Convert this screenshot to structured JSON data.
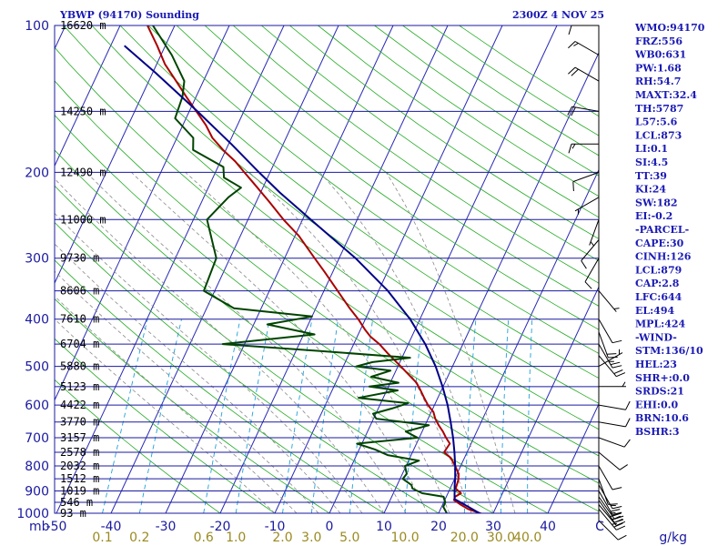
{
  "chart_data": {
    "type": "skew-t",
    "title": "YBWP (94170) Sounding",
    "datetime": "2300Z  4 NOV 25",
    "pressure_axis": {
      "ticks": [
        100,
        200,
        300,
        400,
        500,
        600,
        700,
        800,
        900,
        1000
      ],
      "top": 100,
      "bottom": 1000,
      "unit": "mb"
    },
    "temperature_axis": {
      "ticks": [
        -50,
        -40,
        -30,
        -20,
        -10,
        0,
        10,
        20,
        30,
        40
      ],
      "unit": "C",
      "range": [
        -50,
        50
      ]
    },
    "mixing_ratio_labels": [
      "0.1",
      "0.2",
      "0.6",
      "1.0",
      "2.0",
      "3.0",
      "5.0",
      "10.0",
      "20.0",
      "30.0",
      "40.0"
    ],
    "mixing_ratio_unit": "g/kg",
    "height_levels": [
      {
        "p": 100,
        "label": "16620 m"
      },
      {
        "p": 150,
        "label": "14250 m"
      },
      {
        "p": 200,
        "label": "12490 m"
      },
      {
        "p": 250,
        "label": "11000 m"
      },
      {
        "p": 300,
        "label": "9730 m"
      },
      {
        "p": 350,
        "label": "8606 m"
      },
      {
        "p": 400,
        "label": "7610 m"
      },
      {
        "p": 450,
        "label": "6704 m"
      },
      {
        "p": 500,
        "label": "5880 m"
      },
      {
        "p": 550,
        "label": "5123 m"
      },
      {
        "p": 600,
        "label": "4422 m"
      },
      {
        "p": 650,
        "label": "3770 m"
      },
      {
        "p": 700,
        "label": "3157 m"
      },
      {
        "p": 750,
        "label": "2578 m"
      },
      {
        "p": 800,
        "label": "2032 m"
      },
      {
        "p": 850,
        "label": "1512 m"
      },
      {
        "p": 900,
        "label": "1019 m"
      },
      {
        "p": 950,
        "label": "546 m"
      },
      {
        "p": 1000,
        "label": "93 m"
      }
    ],
    "series": [
      {
        "name": "Temperature",
        "color": "#aa0000",
        "points": [
          [
            1006,
            28.5
          ],
          [
            1000,
            27.6
          ],
          [
            980,
            25.0
          ],
          [
            960,
            23.3
          ],
          [
            940,
            21.7
          ],
          [
            925,
            21.6
          ],
          [
            910,
            22.4
          ],
          [
            890,
            21.0
          ],
          [
            860,
            20.8
          ],
          [
            850,
            20.7
          ],
          [
            830,
            20.3
          ],
          [
            800,
            19.0
          ],
          [
            770,
            17.5
          ],
          [
            750,
            15.8
          ],
          [
            720,
            16.1
          ],
          [
            700,
            14.9
          ],
          [
            680,
            13.8
          ],
          [
            660,
            12.5
          ],
          [
            640,
            11.3
          ],
          [
            620,
            10.4
          ],
          [
            600,
            8.8
          ],
          [
            580,
            7.5
          ],
          [
            560,
            6.2
          ],
          [
            540,
            4.8
          ],
          [
            500,
            0.5
          ],
          [
            470,
            -3.0
          ],
          [
            450,
            -5.3
          ],
          [
            435,
            -7.5
          ],
          [
            420,
            -9.2
          ],
          [
            400,
            -11.3
          ],
          [
            380,
            -13.8
          ],
          [
            350,
            -17.5
          ],
          [
            320,
            -21.5
          ],
          [
            300,
            -24.5
          ],
          [
            270,
            -29.3
          ],
          [
            250,
            -33.5
          ],
          [
            230,
            -37.6
          ],
          [
            210,
            -42.2
          ],
          [
            200,
            -44.7
          ],
          [
            190,
            -47.3
          ],
          [
            180,
            -50.5
          ],
          [
            170,
            -53.5
          ],
          [
            160,
            -55.8
          ],
          [
            150,
            -58.7
          ],
          [
            140,
            -61.8
          ],
          [
            130,
            -65.0
          ],
          [
            120,
            -68.5
          ],
          [
            110,
            -71.5
          ],
          [
            100,
            -75.0
          ]
        ]
      },
      {
        "name": "Dewpoint",
        "color": "#004400",
        "points": [
          [
            1006,
            22.0
          ],
          [
            1000,
            21.5
          ],
          [
            970,
            20.3
          ],
          [
            950,
            20.3
          ],
          [
            925,
            19.5
          ],
          [
            910,
            15.3
          ],
          [
            890,
            13.1
          ],
          [
            875,
            12.6
          ],
          [
            850,
            10.5
          ],
          [
            830,
            10.8
          ],
          [
            800,
            9.8
          ],
          [
            780,
            11.9
          ],
          [
            760,
            5.7
          ],
          [
            740,
            2.9
          ],
          [
            720,
            -0.9
          ],
          [
            700,
            9.7
          ],
          [
            680,
            7.0
          ],
          [
            660,
            10.7
          ],
          [
            640,
            0.5
          ],
          [
            625,
            -0.5
          ],
          [
            610,
            2.5
          ],
          [
            595,
            5.0
          ],
          [
            580,
            -4.5
          ],
          [
            560,
            2.0
          ],
          [
            550,
            -3.5
          ],
          [
            540,
            1.5
          ],
          [
            525,
            -4.0
          ],
          [
            510,
            -1.0
          ],
          [
            500,
            -7.6
          ],
          [
            490,
            -5.0
          ],
          [
            480,
            1.5
          ],
          [
            465,
            -15.5
          ],
          [
            450,
            -34.0
          ],
          [
            430,
            -18.0
          ],
          [
            410,
            -27.5
          ],
          [
            395,
            -20.0
          ],
          [
            380,
            -35.0
          ],
          [
            350,
            -42.0
          ],
          [
            300,
            -42.5
          ],
          [
            250,
            -47.5
          ],
          [
            225,
            -45.5
          ],
          [
            215,
            -44.0
          ],
          [
            205,
            -48.0
          ],
          [
            195,
            -49.0
          ],
          [
            180,
            -56.0
          ],
          [
            170,
            -57.0
          ],
          [
            155,
            -62.0
          ],
          [
            140,
            -62.5
          ],
          [
            130,
            -63.5
          ],
          [
            115,
            -68.0
          ],
          [
            100,
            -74.0
          ]
        ]
      },
      {
        "name": "Parcel",
        "color": "#000088",
        "points": [
          [
            1006,
            28.0
          ],
          [
            950,
            23.1
          ],
          [
            935,
            21.7
          ],
          [
            879,
            20.6
          ],
          [
            850,
            20.1
          ],
          [
            800,
            19.0
          ],
          [
            750,
            17.7
          ],
          [
            700,
            16.2
          ],
          [
            650,
            14.4
          ],
          [
            600,
            12.4
          ],
          [
            550,
            9.9
          ],
          [
            500,
            6.9
          ],
          [
            450,
            3.1
          ],
          [
            400,
            -1.8
          ],
          [
            350,
            -8.3
          ],
          [
            300,
            -17.0
          ],
          [
            250,
            -28.5
          ],
          [
            220,
            -36.5
          ],
          [
            200,
            -42.0
          ],
          [
            175,
            -49.5
          ],
          [
            150,
            -58.5
          ],
          [
            125,
            -69.5
          ],
          [
            110,
            -77.5
          ]
        ]
      }
    ],
    "wind_barbs": [
      {
        "p": 1006,
        "dir": 135,
        "spd": 10
      },
      {
        "p": 980,
        "dir": 140,
        "spd": 25
      },
      {
        "p": 960,
        "dir": 140,
        "spd": 30
      },
      {
        "p": 940,
        "dir": 145,
        "spd": 30
      },
      {
        "p": 925,
        "dir": 145,
        "spd": 25
      },
      {
        "p": 900,
        "dir": 150,
        "spd": 20
      },
      {
        "p": 875,
        "dir": 150,
        "spd": 15
      },
      {
        "p": 850,
        "dir": 160,
        "spd": 10
      },
      {
        "p": 800,
        "dir": 150,
        "spd": 10
      },
      {
        "p": 750,
        "dir": 130,
        "spd": 10
      },
      {
        "p": 700,
        "dir": 110,
        "spd": 10
      },
      {
        "p": 650,
        "dir": 100,
        "spd": 10
      },
      {
        "p": 600,
        "dir": 100,
        "spd": 10
      },
      {
        "p": 550,
        "dir": 90,
        "spd": 5
      },
      {
        "p": 500,
        "dir": 60,
        "spd": 5
      },
      {
        "p": 475,
        "dir": 140,
        "spd": 20
      },
      {
        "p": 450,
        "dir": 150,
        "spd": 25
      },
      {
        "p": 425,
        "dir": 160,
        "spd": 20
      },
      {
        "p": 400,
        "dir": 150,
        "spd": 10
      },
      {
        "p": 350,
        "dir": 140,
        "spd": 5
      },
      {
        "p": 300,
        "dir": 210,
        "spd": 10
      },
      {
        "p": 275,
        "dir": 220,
        "spd": 10
      },
      {
        "p": 250,
        "dir": 200,
        "spd": 5
      },
      {
        "p": 225,
        "dir": 240,
        "spd": 5
      },
      {
        "p": 200,
        "dir": 250,
        "spd": 10
      },
      {
        "p": 175,
        "dir": 270,
        "spd": 15
      },
      {
        "p": 150,
        "dir": 280,
        "spd": 20
      },
      {
        "p": 130,
        "dir": 300,
        "spd": 20
      },
      {
        "p": 115,
        "dir": 300,
        "spd": 15
      },
      {
        "p": 100,
        "dir": 270,
        "spd": 10
      }
    ],
    "indices": [
      "WMO:94170",
      "FRZ:556",
      "WB0:631",
      "PW:1.68",
      "RH:54.7",
      "MAXT:32.4",
      "TH:5787",
      "L57:5.6",
      "LCL:873",
      "LI:0.1",
      "SI:4.5",
      "TT:39",
      "KI:24",
      "SW:182",
      "EI:-0.2",
      "-PARCEL-",
      "CAPE:30",
      "CINH:126",
      "LCL:879",
      "CAP:2.8",
      "LFC:644",
      "EL:494",
      "MPL:424",
      "-WIND-",
      "STM:136/10",
      "HEL:23",
      "SHR+:0.0",
      "SRDS:21",
      "EHI:0.0",
      "BRN:10.6",
      "BSHR:3"
    ]
  }
}
